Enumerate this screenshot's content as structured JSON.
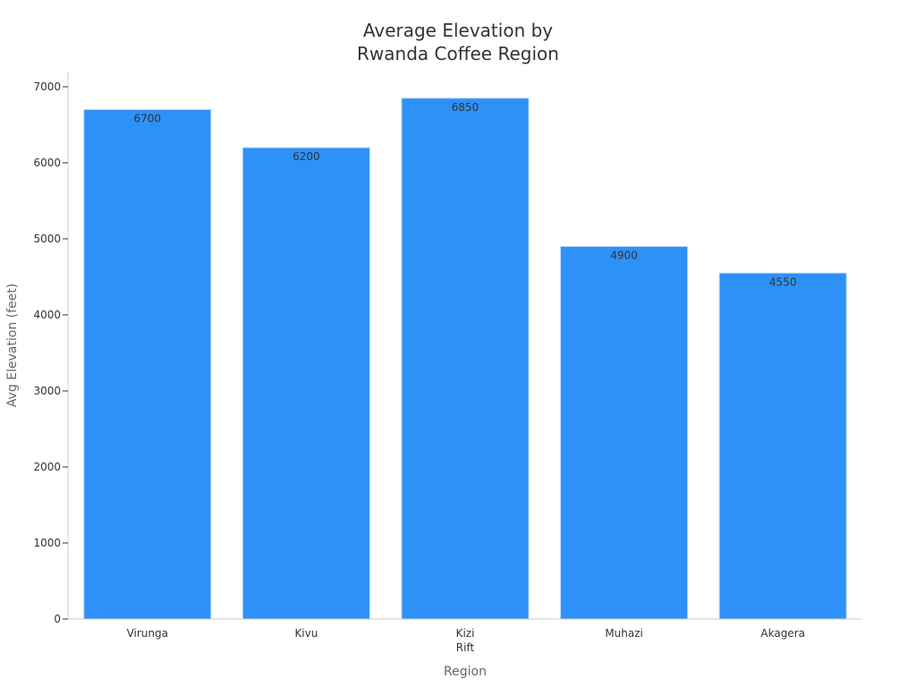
{
  "chart_data": {
    "type": "bar",
    "title_lines": [
      "Average Elevation by",
      "Rwanda Coffee Region"
    ],
    "xlabel": "Region",
    "ylabel": "Avg Elevation (feet)",
    "categories": [
      [
        "Virunga"
      ],
      [
        "Kivu"
      ],
      [
        "Kizi",
        "Rift"
      ],
      [
        "Muhazi"
      ],
      [
        "Akagera"
      ]
    ],
    "values": [
      6700,
      6200,
      6850,
      4900,
      4550
    ],
    "ylim": [
      0,
      7200
    ],
    "yticks": [
      0,
      1000,
      2000,
      3000,
      4000,
      5000,
      6000,
      7000
    ],
    "bar_color": "#2e91f8",
    "axis_color": "#cccccc",
    "grid": false,
    "legend": "none"
  }
}
